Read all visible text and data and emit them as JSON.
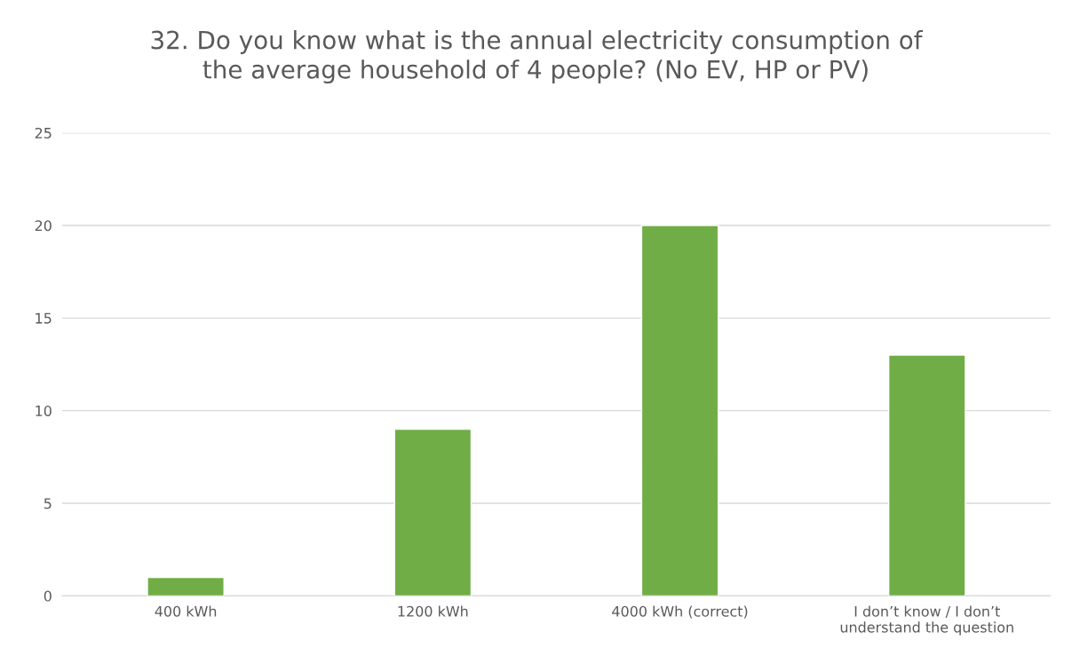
{
  "chart_data": {
    "type": "bar",
    "title": "32. Do you know what is the annual electricity consumption of\nthe average household of 4 people? (No EV, HP or PV)",
    "categories": [
      "400 kWh",
      "1200 kWh",
      "4000 kWh (correct)",
      "I don’t know / I don’t\nunderstand the question"
    ],
    "values": [
      1,
      9,
      20,
      13
    ],
    "color": "#70ad47",
    "ylim": [
      0,
      25
    ],
    "yticks": [
      0,
      5,
      10,
      15,
      20,
      25
    ],
    "grid": "y",
    "legend": false
  }
}
